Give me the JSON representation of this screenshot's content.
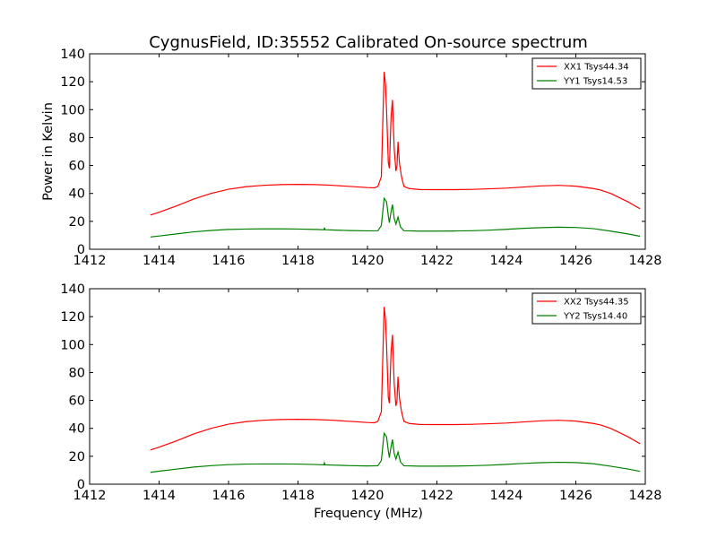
{
  "chart_data": {
    "type": "line",
    "title": "CygnusField, ID:35552 Calibrated On-source spectrum",
    "xlabel": "Frequency (MHz)",
    "ylabel": "Power in Kelvin",
    "xlim": [
      1412,
      1428
    ],
    "ylim": [
      0,
      140
    ],
    "xticks": [
      1412,
      1414,
      1416,
      1418,
      1420,
      1422,
      1424,
      1426,
      1428
    ],
    "yticks": [
      0,
      20,
      40,
      60,
      80,
      100,
      120,
      140
    ],
    "grid": false,
    "legend_position": "top-right",
    "colors": {
      "XX": "#ff0000",
      "YY": "#008000"
    },
    "subplots": [
      {
        "ylabel": "Power in Kelvin",
        "series": [
          {
            "name": "XX1 Tsys44.34",
            "color": "#ff0000",
            "points": [
              [
                1413.75,
                24.5
              ],
              [
                1414.0,
                26.5
              ],
              [
                1414.5,
                31.0
              ],
              [
                1415.0,
                36.0
              ],
              [
                1415.5,
                40.0
              ],
              [
                1416.0,
                43.0
              ],
              [
                1416.5,
                44.8
              ],
              [
                1417.0,
                45.8
              ],
              [
                1417.5,
                46.3
              ],
              [
                1418.0,
                46.5
              ],
              [
                1418.5,
                46.3
              ],
              [
                1419.0,
                45.8
              ],
              [
                1419.5,
                45.0
              ],
              [
                1420.0,
                44.2
              ],
              [
                1420.2,
                44.0
              ],
              [
                1420.3,
                45.0
              ],
              [
                1420.4,
                52.0
              ],
              [
                1420.48,
                127.0
              ],
              [
                1420.52,
                118.0
              ],
              [
                1420.55,
                100.0
              ],
              [
                1420.6,
                62.0
              ],
              [
                1420.63,
                58.0
              ],
              [
                1420.68,
                95.0
              ],
              [
                1420.72,
                107.0
              ],
              [
                1420.77,
                72.0
              ],
              [
                1420.82,
                56.0
              ],
              [
                1420.85,
                60.0
              ],
              [
                1420.88,
                77.0
              ],
              [
                1420.92,
                62.0
              ],
              [
                1420.98,
                52.0
              ],
              [
                1421.05,
                45.0
              ],
              [
                1421.2,
                43.5
              ],
              [
                1421.5,
                42.8
              ],
              [
                1422.0,
                42.7
              ],
              [
                1422.5,
                42.7
              ],
              [
                1423.0,
                42.9
              ],
              [
                1423.5,
                43.3
              ],
              [
                1424.0,
                43.8
              ],
              [
                1424.5,
                44.6
              ],
              [
                1425.0,
                45.4
              ],
              [
                1425.5,
                45.8
              ],
              [
                1426.0,
                45.2
              ],
              [
                1426.5,
                43.5
              ],
              [
                1426.7,
                42.5
              ],
              [
                1427.0,
                40.0
              ],
              [
                1427.5,
                34.0
              ],
              [
                1427.85,
                29.0
              ]
            ]
          },
          {
            "name": "YY1 Tsys14.53",
            "color": "#008000",
            "points": [
              [
                1413.75,
                8.8
              ],
              [
                1414.0,
                9.5
              ],
              [
                1414.5,
                11.0
              ],
              [
                1415.0,
                12.5
              ],
              [
                1415.5,
                13.5
              ],
              [
                1416.0,
                14.2
              ],
              [
                1416.5,
                14.5
              ],
              [
                1417.0,
                14.6
              ],
              [
                1417.5,
                14.6
              ],
              [
                1418.0,
                14.5
              ],
              [
                1418.5,
                14.2
              ],
              [
                1418.75,
                14.0
              ],
              [
                1418.76,
                15.5
              ],
              [
                1418.78,
                14.0
              ],
              [
                1419.0,
                13.8
              ],
              [
                1419.5,
                13.4
              ],
              [
                1420.0,
                13.2
              ],
              [
                1420.3,
                13.3
              ],
              [
                1420.4,
                17.0
              ],
              [
                1420.48,
                36.5
              ],
              [
                1420.55,
                34.0
              ],
              [
                1420.6,
                24.0
              ],
              [
                1420.63,
                19.0
              ],
              [
                1420.68,
                27.0
              ],
              [
                1420.72,
                32.0
              ],
              [
                1420.77,
                22.0
              ],
              [
                1420.82,
                18.0
              ],
              [
                1420.88,
                23.0
              ],
              [
                1420.95,
                16.0
              ],
              [
                1421.05,
                13.3
              ],
              [
                1421.5,
                13.0
              ],
              [
                1422.0,
                13.0
              ],
              [
                1422.5,
                13.1
              ],
              [
                1423.0,
                13.3
              ],
              [
                1423.5,
                13.7
              ],
              [
                1424.0,
                14.3
              ],
              [
                1424.5,
                15.0
              ],
              [
                1425.0,
                15.5
              ],
              [
                1425.5,
                15.8
              ],
              [
                1426.0,
                15.6
              ],
              [
                1426.5,
                14.8
              ],
              [
                1427.0,
                13.0
              ],
              [
                1427.5,
                11.0
              ],
              [
                1427.85,
                9.3
              ]
            ]
          }
        ]
      },
      {
        "ylabel": "",
        "series": [
          {
            "name": "XX2 Tsys44.35",
            "color": "#ff0000",
            "points": [
              [
                1413.75,
                24.5
              ],
              [
                1414.0,
                26.5
              ],
              [
                1414.5,
                31.0
              ],
              [
                1415.0,
                36.0
              ],
              [
                1415.5,
                40.0
              ],
              [
                1416.0,
                43.0
              ],
              [
                1416.5,
                44.8
              ],
              [
                1417.0,
                45.8
              ],
              [
                1417.5,
                46.3
              ],
              [
                1418.0,
                46.5
              ],
              [
                1418.5,
                46.3
              ],
              [
                1419.0,
                45.8
              ],
              [
                1419.5,
                45.0
              ],
              [
                1420.0,
                44.2
              ],
              [
                1420.2,
                44.0
              ],
              [
                1420.3,
                45.0
              ],
              [
                1420.4,
                52.0
              ],
              [
                1420.48,
                127.0
              ],
              [
                1420.52,
                118.0
              ],
              [
                1420.55,
                100.0
              ],
              [
                1420.6,
                62.0
              ],
              [
                1420.63,
                58.0
              ],
              [
                1420.68,
                95.0
              ],
              [
                1420.72,
                107.0
              ],
              [
                1420.77,
                72.0
              ],
              [
                1420.82,
                56.0
              ],
              [
                1420.85,
                60.0
              ],
              [
                1420.88,
                77.0
              ],
              [
                1420.92,
                62.0
              ],
              [
                1420.98,
                52.0
              ],
              [
                1421.05,
                45.0
              ],
              [
                1421.2,
                43.5
              ],
              [
                1421.5,
                42.8
              ],
              [
                1422.0,
                42.7
              ],
              [
                1422.5,
                42.7
              ],
              [
                1423.0,
                42.9
              ],
              [
                1423.5,
                43.3
              ],
              [
                1424.0,
                43.8
              ],
              [
                1424.5,
                44.6
              ],
              [
                1425.0,
                45.4
              ],
              [
                1425.5,
                45.8
              ],
              [
                1426.0,
                45.2
              ],
              [
                1426.5,
                43.5
              ],
              [
                1426.7,
                42.5
              ],
              [
                1427.0,
                40.0
              ],
              [
                1427.5,
                34.0
              ],
              [
                1427.85,
                29.0
              ]
            ]
          },
          {
            "name": "YY2 Tsys14.40",
            "color": "#008000",
            "points": [
              [
                1413.75,
                8.5
              ],
              [
                1414.0,
                9.3
              ],
              [
                1414.5,
                10.8
              ],
              [
                1415.0,
                12.3
              ],
              [
                1415.5,
                13.3
              ],
              [
                1416.0,
                14.0
              ],
              [
                1416.5,
                14.4
              ],
              [
                1417.0,
                14.5
              ],
              [
                1417.5,
                14.5
              ],
              [
                1418.0,
                14.4
              ],
              [
                1418.5,
                14.1
              ],
              [
                1418.75,
                13.9
              ],
              [
                1418.76,
                15.3
              ],
              [
                1418.78,
                13.9
              ],
              [
                1419.0,
                13.7
              ],
              [
                1419.5,
                13.3
              ],
              [
                1420.0,
                13.1
              ],
              [
                1420.3,
                13.2
              ],
              [
                1420.4,
                17.0
              ],
              [
                1420.48,
                36.5
              ],
              [
                1420.55,
                34.0
              ],
              [
                1420.6,
                24.0
              ],
              [
                1420.63,
                19.0
              ],
              [
                1420.68,
                27.0
              ],
              [
                1420.72,
                32.0
              ],
              [
                1420.77,
                22.0
              ],
              [
                1420.82,
                18.0
              ],
              [
                1420.88,
                23.0
              ],
              [
                1420.95,
                16.0
              ],
              [
                1421.05,
                13.2
              ],
              [
                1421.5,
                12.9
              ],
              [
                1422.0,
                12.9
              ],
              [
                1422.5,
                13.0
              ],
              [
                1423.0,
                13.2
              ],
              [
                1423.5,
                13.6
              ],
              [
                1424.0,
                14.2
              ],
              [
                1424.5,
                14.9
              ],
              [
                1425.0,
                15.4
              ],
              [
                1425.5,
                15.7
              ],
              [
                1426.0,
                15.5
              ],
              [
                1426.5,
                14.7
              ],
              [
                1427.0,
                12.9
              ],
              [
                1427.5,
                10.9
              ],
              [
                1427.85,
                9.2
              ]
            ]
          }
        ]
      }
    ]
  }
}
